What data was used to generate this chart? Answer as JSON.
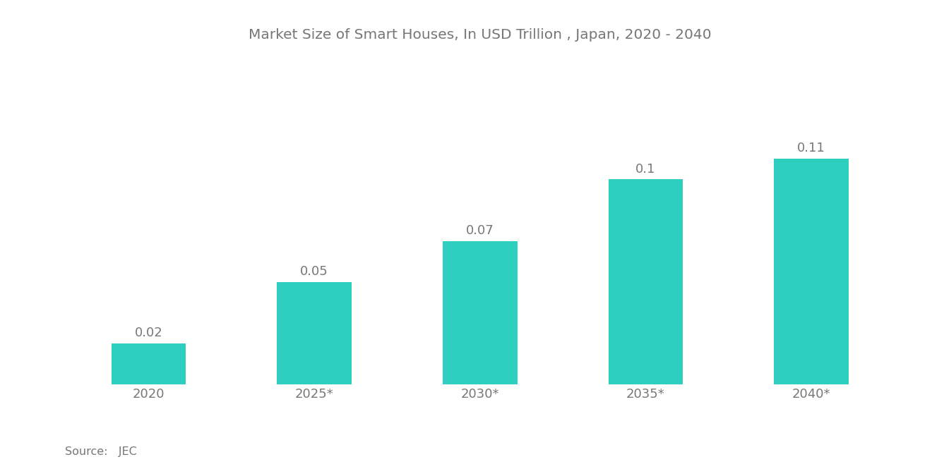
{
  "title": "Market Size of Smart Houses, In USD Trillion , Japan, 2020 - 2040",
  "categories": [
    "2020",
    "2025*",
    "2030*",
    "2035*",
    "2040*"
  ],
  "values": [
    0.02,
    0.05,
    0.07,
    0.1,
    0.11
  ],
  "bar_color": "#2ECFBF",
  "background_color": "#ffffff",
  "title_fontsize": 14.5,
  "label_fontsize": 13,
  "tick_fontsize": 13,
  "source_text": "Source:   JEC",
  "ylim": [
    0,
    0.16
  ],
  "bar_width": 0.45
}
